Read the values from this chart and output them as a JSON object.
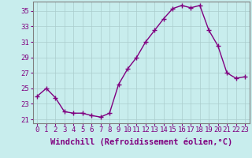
{
  "x": [
    0,
    1,
    2,
    3,
    4,
    5,
    6,
    7,
    8,
    9,
    10,
    11,
    12,
    13,
    14,
    15,
    16,
    17,
    18,
    19,
    20,
    21,
    22,
    23
  ],
  "y": [
    24.0,
    25.0,
    23.8,
    22.0,
    21.8,
    21.8,
    21.5,
    21.3,
    21.8,
    25.5,
    27.5,
    29.0,
    31.0,
    32.5,
    34.0,
    35.3,
    35.7,
    35.4,
    35.7,
    32.5,
    30.5,
    27.0,
    26.3,
    26.5
  ],
  "line_color": "#800080",
  "marker": "+",
  "marker_size": 4,
  "bg_color": "#c8eded",
  "grid_color": "#aacccc",
  "xlabel": "Windchill (Refroidissement éolien,°C)",
  "yticks": [
    21,
    23,
    25,
    27,
    29,
    31,
    33,
    35
  ],
  "xticks": [
    0,
    1,
    2,
    3,
    4,
    5,
    6,
    7,
    8,
    9,
    10,
    11,
    12,
    13,
    14,
    15,
    16,
    17,
    18,
    19,
    20,
    21,
    22,
    23
  ],
  "ylim": [
    20.5,
    36.2
  ],
  "xlim": [
    -0.5,
    23.5
  ],
  "tick_color": "#800080",
  "label_color": "#800080",
  "tick_fontsize": 6.5,
  "xlabel_fontsize": 7.5,
  "linewidth": 1.0,
  "marker_linewidth": 1.0
}
